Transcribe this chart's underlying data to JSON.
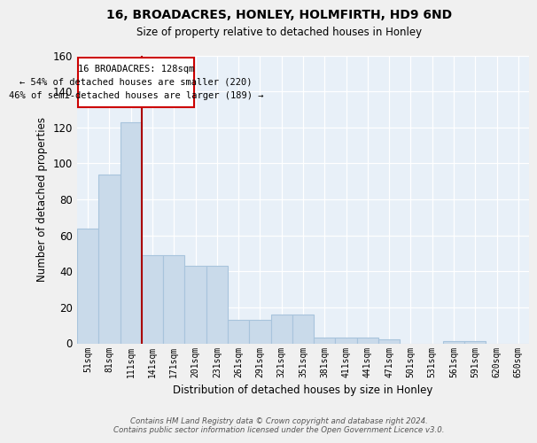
{
  "title": "16, BROADACRES, HONLEY, HOLMFIRTH, HD9 6ND",
  "subtitle": "Size of property relative to detached houses in Honley",
  "xlabel": "Distribution of detached houses by size in Honley",
  "ylabel": "Number of detached properties",
  "bar_labels": [
    "51sqm",
    "81sqm",
    "111sqm",
    "141sqm",
    "171sqm",
    "201sqm",
    "231sqm",
    "261sqm",
    "291sqm",
    "321sqm",
    "351sqm",
    "381sqm",
    "411sqm",
    "441sqm",
    "471sqm",
    "501sqm",
    "531sqm",
    "561sqm",
    "591sqm",
    "620sqm",
    "650sqm"
  ],
  "bar_values": [
    64,
    94,
    123,
    49,
    49,
    43,
    43,
    13,
    13,
    16,
    16,
    3,
    3,
    3,
    2,
    0,
    0,
    1,
    1,
    0,
    0
  ],
  "bar_color": "#c9daea",
  "bar_edge_color": "#a8c4dc",
  "background_color": "#e8f0f8",
  "grid_color": "#ffffff",
  "vline_color": "#aa0000",
  "annotation_text": "16 BROADACRES: 128sqm\n← 54% of detached houses are smaller (220)\n46% of semi-detached houses are larger (189) →",
  "annotation_box_color": "#ffffff",
  "annotation_box_edge_color": "#cc0000",
  "ylim": [
    0,
    160
  ],
  "yticks": [
    0,
    20,
    40,
    60,
    80,
    100,
    120,
    140,
    160
  ],
  "footer_text": "Contains HM Land Registry data © Crown copyright and database right 2024.\nContains public sector information licensed under the Open Government Licence v3.0."
}
